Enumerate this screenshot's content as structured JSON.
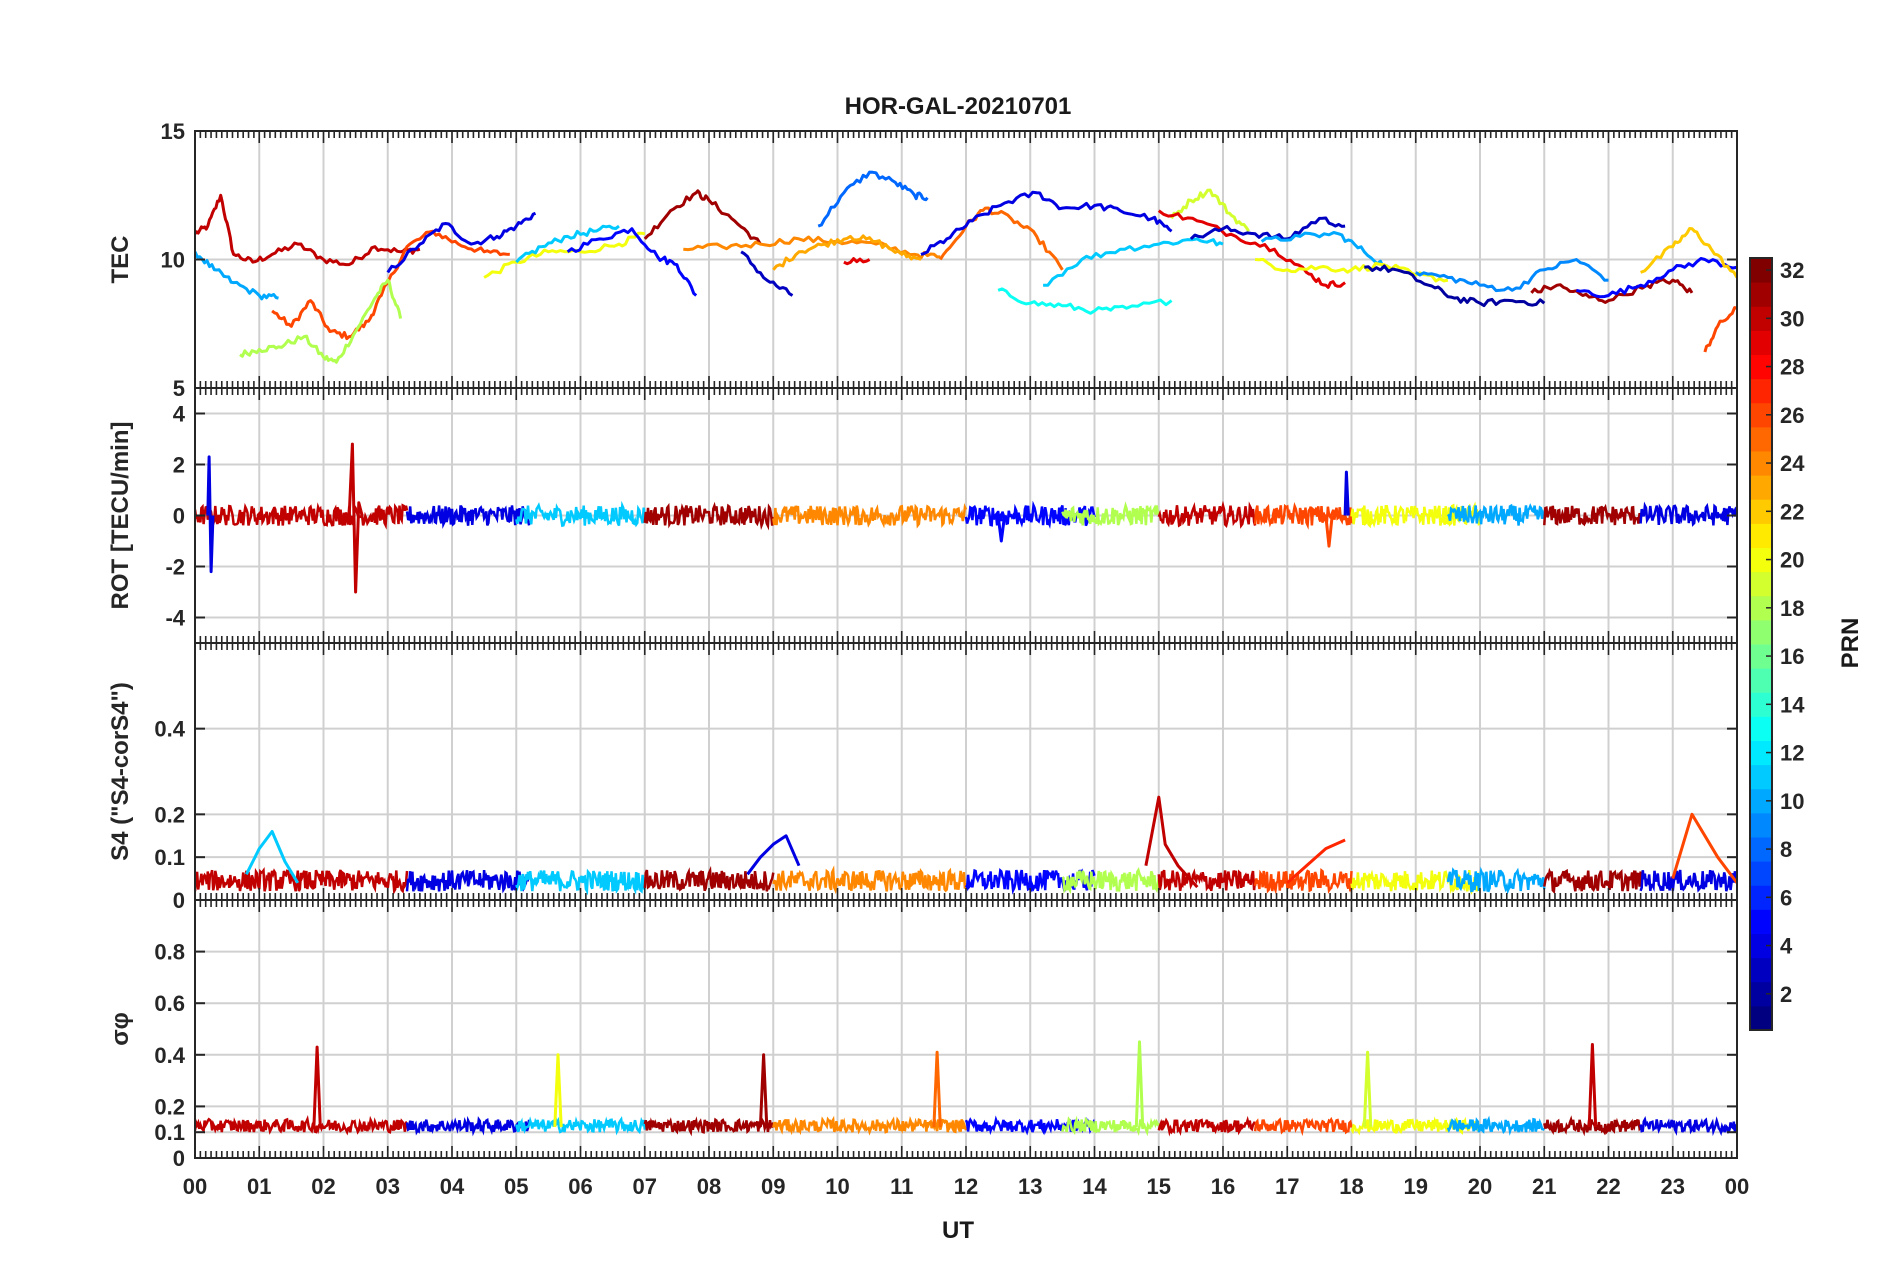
{
  "figure": {
    "title": "HOR-GAL-20210701"
  },
  "colorbar": {
    "label": "PRN",
    "min": 1,
    "max": 32,
    "ticks": [
      "2",
      "4",
      "6",
      "8",
      "10",
      "12",
      "14",
      "16",
      "18",
      "20",
      "22",
      "24",
      "26",
      "28",
      "30",
      "32"
    ],
    "colormap": "jet"
  },
  "x_axis": {
    "label": "UT",
    "range_hours": [
      0,
      24
    ],
    "tick_labels": [
      "00",
      "01",
      "02",
      "03",
      "04",
      "05",
      "06",
      "07",
      "08",
      "09",
      "10",
      "11",
      "12",
      "13",
      "14",
      "15",
      "16",
      "17",
      "18",
      "19",
      "20",
      "21",
      "22",
      "23",
      "00"
    ]
  },
  "chart_data": [
    {
      "type": "line",
      "ylabel": "TEC",
      "ylim": [
        5,
        15
      ],
      "yticks": [
        "15",
        "10",
        "5"
      ],
      "grid": true,
      "series": [
        {
          "prn": 30,
          "x": [
            0.0,
            0.2,
            0.4,
            0.6,
            0.9,
            1.2,
            1.6,
            2.0,
            2.4,
            2.8,
            3.2,
            3.5
          ],
          "y": [
            11.0,
            11.3,
            12.5,
            10.2,
            9.9,
            10.2,
            10.6,
            10.0,
            9.8,
            10.5,
            10.3,
            10.4
          ]
        },
        {
          "prn": 26,
          "x": [
            1.2,
            1.5,
            1.8,
            2.1,
            2.4,
            2.7,
            2.9,
            3.3,
            3.7,
            4.1,
            4.5,
            4.9
          ],
          "y": [
            8.0,
            7.4,
            8.4,
            7.2,
            7.0,
            7.6,
            8.6,
            10.5,
            11.1,
            10.6,
            10.3,
            10.2
          ]
        },
        {
          "prn": 18,
          "x": [
            0.7,
            1.0,
            1.3,
            1.7,
            2.0,
            2.2,
            2.5,
            2.8,
            3.0,
            3.2
          ],
          "y": [
            6.3,
            6.5,
            6.6,
            7.0,
            6.2,
            6.0,
            7.2,
            8.5,
            9.2,
            7.7
          ]
        },
        {
          "prn": 10,
          "x": [
            0.0,
            0.3,
            0.6,
            1.0,
            1.3
          ],
          "y": [
            10.3,
            9.6,
            9.1,
            8.6,
            8.5
          ]
        },
        {
          "prn": 4,
          "x": [
            3.0,
            3.5,
            3.9,
            4.3,
            4.7,
            5.0,
            5.3
          ],
          "y": [
            9.5,
            10.6,
            11.4,
            10.6,
            10.9,
            11.3,
            11.8
          ]
        },
        {
          "prn": 20,
          "x": [
            4.5,
            5.0,
            5.5,
            6.0,
            6.6,
            7.0
          ],
          "y": [
            9.3,
            9.9,
            10.3,
            10.3,
            10.6,
            11.0
          ]
        },
        {
          "prn": 11,
          "x": [
            5.0,
            5.4,
            5.8,
            6.2,
            6.6
          ],
          "y": [
            9.9,
            10.5,
            10.9,
            11.1,
            11.3
          ]
        },
        {
          "prn": 5,
          "x": [
            5.8,
            6.3,
            6.8,
            7.2,
            7.5,
            7.8
          ],
          "y": [
            10.3,
            10.8,
            11.2,
            10.1,
            9.8,
            8.6
          ]
        },
        {
          "prn": 31,
          "x": [
            7.0,
            7.4,
            7.8,
            8.0,
            8.4,
            8.8
          ],
          "y": [
            10.8,
            11.9,
            12.6,
            12.3,
            11.5,
            10.6
          ]
        },
        {
          "prn": 3,
          "x": [
            8.5,
            8.9,
            9.3
          ],
          "y": [
            10.3,
            9.2,
            8.6
          ]
        },
        {
          "prn": 24,
          "x": [
            7.6,
            8.2,
            8.8,
            9.4,
            10.0,
            10.6,
            11.2,
            11.6
          ],
          "y": [
            10.4,
            10.5,
            10.6,
            10.8,
            10.7,
            10.6,
            10.2,
            10.1
          ]
        },
        {
          "prn": 23,
          "x": [
            9.0,
            9.4,
            9.8,
            10.2,
            10.6,
            11.0,
            11.3
          ],
          "y": [
            9.6,
            10.3,
            10.6,
            10.9,
            10.7,
            10.2,
            10.0
          ]
        },
        {
          "prn": 8,
          "x": [
            9.7,
            10.1,
            10.5,
            10.9,
            11.2,
            11.4
          ],
          "y": [
            11.3,
            12.6,
            13.4,
            13.0,
            12.5,
            12.4
          ]
        },
        {
          "prn": 29,
          "x": [
            10.1,
            10.5
          ],
          "y": [
            9.9,
            10.0
          ]
        },
        {
          "prn": 25,
          "x": [
            11.6,
            12.0,
            12.3,
            12.7,
            13.1,
            13.5
          ],
          "y": [
            10.0,
            11.3,
            12.0,
            11.6,
            10.9,
            9.6
          ]
        },
        {
          "prn": 4,
          "x": [
            11.3,
            11.7,
            12.1,
            12.6,
            13.1,
            13.5,
            14.0,
            14.4,
            14.9,
            15.2
          ],
          "y": [
            10.2,
            10.8,
            11.5,
            12.2,
            12.6,
            12.0,
            12.1,
            11.9,
            11.6,
            11.1
          ]
        },
        {
          "prn": 13,
          "x": [
            12.5,
            13.0,
            13.5,
            14.0,
            14.5,
            15.2
          ],
          "y": [
            8.8,
            8.3,
            8.2,
            8.0,
            8.1,
            8.4
          ]
        },
        {
          "prn": 11,
          "x": [
            13.2,
            13.8,
            14.4,
            15.0,
            15.6,
            16.0
          ],
          "y": [
            9.0,
            10.0,
            10.4,
            10.6,
            10.8,
            10.6
          ]
        },
        {
          "prn": 19,
          "x": [
            15.2,
            15.5,
            15.8,
            16.1,
            16.4
          ],
          "y": [
            11.6,
            12.3,
            12.7,
            11.8,
            11.1
          ]
        },
        {
          "prn": 29,
          "x": [
            15.0,
            15.6,
            16.2,
            16.8,
            17.3,
            17.6,
            17.9
          ],
          "y": [
            11.9,
            11.5,
            10.9,
            10.4,
            9.5,
            9.0,
            9.1
          ]
        },
        {
          "prn": 3,
          "x": [
            15.5,
            16.0,
            16.5,
            17.0,
            17.5,
            17.9
          ],
          "y": [
            10.8,
            11.2,
            11.0,
            10.8,
            11.6,
            11.3
          ]
        },
        {
          "prn": 10,
          "x": [
            16.6,
            17.2,
            17.8,
            18.2,
            18.6
          ],
          "y": [
            10.7,
            10.9,
            11.0,
            10.3,
            9.6
          ]
        },
        {
          "prn": 20,
          "x": [
            16.5,
            17.0,
            17.5,
            18.0,
            18.5,
            19.0,
            19.5
          ],
          "y": [
            10.0,
            9.6,
            9.7,
            9.6,
            9.8,
            9.4,
            9.2
          ]
        },
        {
          "prn": 2,
          "x": [
            18.2,
            18.7,
            19.2,
            19.6,
            20.0,
            20.5,
            21.0
          ],
          "y": [
            9.7,
            9.6,
            9.0,
            8.5,
            8.3,
            8.4,
            8.3
          ]
        },
        {
          "prn": 9,
          "x": [
            19.0,
            19.5,
            20.0,
            20.5,
            21.0,
            21.5,
            22.0
          ],
          "y": [
            9.5,
            9.3,
            9.0,
            8.8,
            9.6,
            10.0,
            9.2
          ]
        },
        {
          "prn": 31,
          "x": [
            20.8,
            21.2,
            21.6,
            22.0,
            22.6,
            23.0,
            23.3
          ],
          "y": [
            8.7,
            9.0,
            8.6,
            8.4,
            9.0,
            9.2,
            8.7
          ]
        },
        {
          "prn": 5,
          "x": [
            21.5,
            22.0,
            22.5,
            23.0,
            23.5,
            24.0
          ],
          "y": [
            8.8,
            8.6,
            9.0,
            9.6,
            10.0,
            9.7
          ]
        },
        {
          "prn": 22,
          "x": [
            22.5,
            23.0,
            23.3,
            23.6,
            24.0
          ],
          "y": [
            9.5,
            10.5,
            11.2,
            10.4,
            9.3
          ]
        },
        {
          "prn": 26,
          "x": [
            23.5,
            23.7,
            24.0
          ],
          "y": [
            6.4,
            7.4,
            8.1
          ]
        }
      ]
    },
    {
      "type": "line",
      "ylabel": "ROT [TECU/min]",
      "ylim": [
        -5,
        5
      ],
      "yticks": [
        "4",
        "2",
        "0",
        "-2",
        "-4"
      ],
      "grid": true,
      "series": [
        {
          "prn": 4,
          "x": [
            0.2,
            0.22,
            0.25,
            0.28
          ],
          "y": [
            0,
            2.3,
            -2.2,
            0
          ]
        },
        {
          "prn": 30,
          "x": [
            2.4,
            2.45,
            2.5,
            2.55,
            2.6
          ],
          "y": [
            0,
            2.8,
            -3.0,
            0.5,
            0
          ]
        },
        {
          "prn": 4,
          "x": [
            17.9,
            17.92,
            17.95
          ],
          "y": [
            0,
            1.7,
            0
          ]
        },
        {
          "prn": 26,
          "x": [
            17.6,
            17.65,
            17.7
          ],
          "y": [
            0,
            -1.2,
            0
          ]
        },
        {
          "prn": 5,
          "x": [
            12.5,
            12.55,
            12.6
          ],
          "y": [
            0,
            -1.0,
            0
          ]
        }
      ]
    },
    {
      "type": "line",
      "ylabel": "S4 (\"S4-corS4\")",
      "ylim": [
        0,
        0.6
      ],
      "yticks": [
        "0.4",
        "0.2",
        "0.1",
        "0"
      ],
      "grid": true,
      "series": [
        {
          "prn": 11,
          "x": [
            0.8,
            1.0,
            1.2,
            1.4,
            1.6
          ],
          "y": [
            0.06,
            0.12,
            0.16,
            0.09,
            0.04
          ]
        },
        {
          "prn": 4,
          "x": [
            8.6,
            8.8,
            9.0,
            9.2,
            9.4
          ],
          "y": [
            0.06,
            0.1,
            0.13,
            0.15,
            0.08
          ]
        },
        {
          "prn": 30,
          "x": [
            14.8,
            15.0,
            15.1,
            15.3,
            15.6
          ],
          "y": [
            0.08,
            0.24,
            0.13,
            0.08,
            0.03
          ]
        },
        {
          "prn": 27,
          "x": [
            17.0,
            17.3,
            17.6,
            17.9
          ],
          "y": [
            0.04,
            0.08,
            0.12,
            0.14
          ]
        },
        {
          "prn": 26,
          "x": [
            23.0,
            23.3,
            23.5,
            23.7,
            24.0
          ],
          "y": [
            0.05,
            0.2,
            0.15,
            0.1,
            0.04
          ]
        }
      ]
    },
    {
      "type": "line",
      "ylabel": "σφ",
      "ylim": [
        0,
        1
      ],
      "yticks": [
        "0.8",
        "0.6",
        "0.4",
        "0.2",
        "0.1",
        "0"
      ],
      "grid": true,
      "series": [
        {
          "prn": 30,
          "x": [
            1.85,
            1.9,
            1.95
          ],
          "y": [
            0.12,
            0.43,
            0.12
          ]
        },
        {
          "prn": 20,
          "x": [
            5.6,
            5.65,
            5.7
          ],
          "y": [
            0.12,
            0.4,
            0.12
          ]
        },
        {
          "prn": 31,
          "x": [
            8.8,
            8.85,
            8.9
          ],
          "y": [
            0.12,
            0.4,
            0.12
          ]
        },
        {
          "prn": 25,
          "x": [
            11.5,
            11.55,
            11.6
          ],
          "y": [
            0.12,
            0.41,
            0.12
          ]
        },
        {
          "prn": 18,
          "x": [
            14.65,
            14.7,
            14.75
          ],
          "y": [
            0.12,
            0.45,
            0.12
          ]
        },
        {
          "prn": 19,
          "x": [
            18.2,
            18.25,
            18.3
          ],
          "y": [
            0.12,
            0.41,
            0.12
          ]
        },
        {
          "prn": 30,
          "x": [
            21.7,
            21.75,
            21.8
          ],
          "y": [
            0.12,
            0.44,
            0.12
          ]
        }
      ]
    }
  ]
}
